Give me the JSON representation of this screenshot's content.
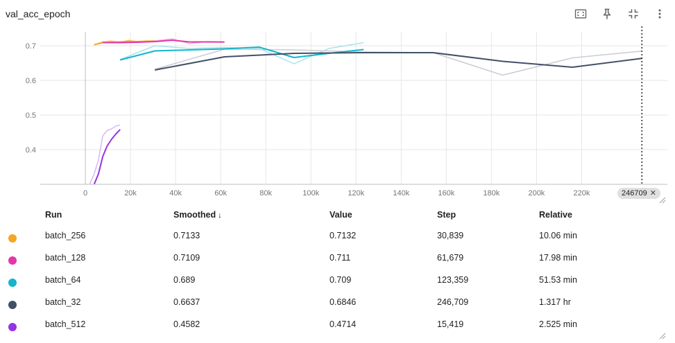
{
  "card": {
    "title": "val_acc_epoch"
  },
  "toolbar": {
    "fit_icon": "fit-domain-icon",
    "pin_icon": "pin-icon",
    "collapse_icon": "collapse-icon",
    "more_icon": "more-vert-icon"
  },
  "chart_data": {
    "type": "line",
    "title": "val_acc_epoch",
    "xlabel": "",
    "ylabel": "",
    "xlim": [
      -20000,
      258000
    ],
    "ylim": [
      0.3,
      0.74
    ],
    "x_ticks": [
      0,
      20000,
      40000,
      60000,
      80000,
      100000,
      120000,
      140000,
      160000,
      180000,
      200000,
      220000
    ],
    "x_tick_labels": [
      "0",
      "20k",
      "40k",
      "60k",
      "80k",
      "100k",
      "120k",
      "140k",
      "160k",
      "180k",
      "200k",
      "220k"
    ],
    "y_ticks": [
      0.4,
      0.5,
      0.6,
      0.7
    ],
    "y_tick_labels": [
      "0.4",
      "0.5",
      "0.6",
      "0.7"
    ],
    "grid": true,
    "cursor_step": 246709,
    "cursor_label": "246709",
    "series": [
      {
        "name": "batch_256",
        "color": "#f5a623",
        "raw_color": "#fbd38d",
        "x": [
          3900,
          7700,
          11600,
          15400,
          19300,
          23100,
          27000,
          30839
        ],
        "raw": [
          0.702,
          0.712,
          0.714,
          0.71,
          0.716,
          0.711,
          0.714,
          0.7132
        ],
        "smoothed": [
          0.703,
          0.709,
          0.711,
          0.711,
          0.713,
          0.712,
          0.713,
          0.7133
        ]
      },
      {
        "name": "batch_128",
        "color": "#e535ab",
        "raw_color": "#f5b0de",
        "x": [
          7700,
          15400,
          23100,
          30800,
          38500,
          46200,
          53900,
          61679
        ],
        "raw": [
          0.71,
          0.708,
          0.712,
          0.714,
          0.72,
          0.706,
          0.712,
          0.711
        ],
        "smoothed": [
          0.709,
          0.709,
          0.71,
          0.712,
          0.716,
          0.711,
          0.711,
          0.7109
        ]
      },
      {
        "name": "batch_64",
        "color": "#12b5cb",
        "raw_color": "#a7e3ec",
        "x": [
          15400,
          30800,
          46200,
          61700,
          77100,
          92500,
          107900,
          123359
        ],
        "raw": [
          0.66,
          0.7,
          0.692,
          0.695,
          0.692,
          0.648,
          0.692,
          0.709
        ],
        "smoothed": [
          0.659,
          0.685,
          0.688,
          0.691,
          0.696,
          0.666,
          0.678,
          0.689
        ]
      },
      {
        "name": "batch_32",
        "color": "#425066",
        "raw_color": "#c9ccd6",
        "x": [
          30800,
          61700,
          92500,
          123400,
          154200,
          185000,
          215900,
          246709
        ],
        "raw": [
          0.632,
          0.69,
          0.688,
          0.682,
          0.68,
          0.615,
          0.665,
          0.6846
        ],
        "smoothed": [
          0.63,
          0.668,
          0.678,
          0.68,
          0.68,
          0.655,
          0.638,
          0.6637
        ]
      },
      {
        "name": "batch_512",
        "color": "#9334e6",
        "raw_color": "#d9b8f5",
        "x": [
          1900,
          3900,
          5800,
          7700,
          9600,
          11600,
          13500,
          15419
        ],
        "raw": [
          0.3,
          0.33,
          0.37,
          0.44,
          0.455,
          0.46,
          0.468,
          0.4714
        ],
        "smoothed": [
          0.285,
          0.3,
          0.33,
          0.38,
          0.41,
          0.43,
          0.445,
          0.4582
        ]
      }
    ]
  },
  "table": {
    "headers": {
      "run": "Run",
      "smoothed": "Smoothed",
      "sort_indicator": "↓",
      "value": "Value",
      "step": "Step",
      "relative": "Relative"
    },
    "rows": [
      {
        "run": "batch_256",
        "smoothed": "0.7133",
        "value": "0.7132",
        "step": "30,839",
        "relative": "10.06 min",
        "color": "#f5a623"
      },
      {
        "run": "batch_128",
        "smoothed": "0.7109",
        "value": "0.711",
        "step": "61,679",
        "relative": "17.98 min",
        "color": "#e535ab"
      },
      {
        "run": "batch_64",
        "smoothed": "0.689",
        "value": "0.709",
        "step": "123,359",
        "relative": "51.53 min",
        "color": "#12b5cb"
      },
      {
        "run": "batch_32",
        "smoothed": "0.6637",
        "value": "0.6846",
        "step": "246,709",
        "relative": "1.317 hr",
        "color": "#425066"
      },
      {
        "run": "batch_512",
        "smoothed": "0.4582",
        "value": "0.4714",
        "step": "15,419",
        "relative": "2.525 min",
        "color": "#9334e6"
      }
    ]
  }
}
